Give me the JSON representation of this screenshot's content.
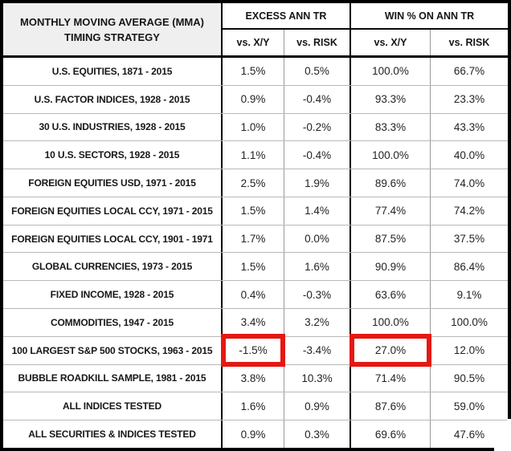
{
  "table": {
    "title_lines": [
      "MONTHLY MOVING AVERAGE (MMA)",
      "TIMING STRATEGY"
    ],
    "groups": [
      {
        "label": "EXCESS ANN TR",
        "sub": [
          "vs. X/Y",
          "vs. RISK"
        ]
      },
      {
        "label": "WIN % ON ANN TR",
        "sub": [
          "vs. X/Y",
          "vs. RISK"
        ]
      }
    ],
    "rows": [
      {
        "label": "U.S. EQUITIES, 1871 - 2015",
        "values": [
          "1.5%",
          "0.5%",
          "100.0%",
          "66.7%"
        ]
      },
      {
        "label": "U.S. FACTOR INDICES, 1928 - 2015",
        "values": [
          "0.9%",
          "-0.4%",
          "93.3%",
          "23.3%"
        ]
      },
      {
        "label": "30 U.S. INDUSTRIES, 1928 - 2015",
        "values": [
          "1.0%",
          "-0.2%",
          "83.3%",
          "43.3%"
        ]
      },
      {
        "label": "10 U.S. SECTORS, 1928 - 2015",
        "values": [
          "1.1%",
          "-0.4%",
          "100.0%",
          "40.0%"
        ]
      },
      {
        "label": "FOREIGN EQUITIES USD, 1971 - 2015",
        "values": [
          "2.5%",
          "1.9%",
          "89.6%",
          "74.0%"
        ]
      },
      {
        "label": "FOREIGN EQUITIES LOCAL CCY, 1971 - 2015",
        "values": [
          "1.5%",
          "1.4%",
          "77.4%",
          "74.2%"
        ]
      },
      {
        "label": "FOREIGN EQUITIES LOCAL CCY, 1901 - 1971",
        "values": [
          "1.7%",
          "0.0%",
          "87.5%",
          "37.5%"
        ]
      },
      {
        "label": "GLOBAL CURRENCIES, 1973 - 2015",
        "values": [
          "1.5%",
          "1.6%",
          "90.9%",
          "86.4%"
        ]
      },
      {
        "label": "FIXED INCOME, 1928 - 2015",
        "values": [
          "0.4%",
          "-0.3%",
          "63.6%",
          "9.1%"
        ]
      },
      {
        "label": "COMMODITIES, 1947 - 2015",
        "values": [
          "3.4%",
          "3.2%",
          "100.0%",
          "100.0%"
        ]
      },
      {
        "label": "100 LARGEST S&P 500 STOCKS, 1963 - 2015",
        "values": [
          "-1.5%",
          "-3.4%",
          "27.0%",
          "12.0%"
        ],
        "highlights": [
          0,
          2
        ]
      },
      {
        "label": "BUBBLE ROADKILL SAMPLE, 1981 - 2015",
        "values": [
          "3.8%",
          "10.3%",
          "71.4%",
          "90.5%"
        ]
      },
      {
        "label": "ALL INDICES TESTED",
        "values": [
          "1.6%",
          "0.9%",
          "87.6%",
          "59.0%"
        ]
      },
      {
        "label": "ALL SECURITIES & INDICES TESTED",
        "values": [
          "0.9%",
          "0.3%",
          "69.6%",
          "47.6%"
        ]
      }
    ],
    "colors": {
      "highlight_border": "#e51812",
      "header_bg": "#efefef",
      "grid_thick": "#000000",
      "grid_thin": "#b8b8b8"
    }
  },
  "chart_data": {
    "type": "table",
    "title": "MONTHLY MOVING AVERAGE (MMA) TIMING STRATEGY",
    "column_groups": [
      "EXCESS ANN TR",
      "WIN % ON ANN TR"
    ],
    "columns": [
      "vs. X/Y",
      "vs. RISK",
      "vs. X/Y",
      "vs. RISK"
    ],
    "categories": [
      "U.S. EQUITIES, 1871 - 2015",
      "U.S. FACTOR INDICES, 1928 - 2015",
      "30 U.S. INDUSTRIES, 1928 - 2015",
      "10 U.S. SECTORS, 1928 - 2015",
      "FOREIGN EQUITIES USD, 1971 - 2015",
      "FOREIGN EQUITIES LOCAL CCY, 1971 - 2015",
      "FOREIGN EQUITIES LOCAL CCY, 1901 - 1971",
      "GLOBAL CURRENCIES, 1973 - 2015",
      "FIXED INCOME, 1928 - 2015",
      "COMMODITIES, 1947 - 2015",
      "100 LARGEST S&P 500 STOCKS, 1963 - 2015",
      "BUBBLE ROADKILL SAMPLE, 1981 - 2015",
      "ALL INDICES TESTED",
      "ALL SECURITIES & INDICES TESTED"
    ],
    "series": [
      {
        "name": "Excess Ann TR vs. X/Y (%)",
        "values": [
          1.5,
          0.9,
          1.0,
          1.1,
          2.5,
          1.5,
          1.7,
          1.5,
          0.4,
          3.4,
          -1.5,
          3.8,
          1.6,
          0.9
        ]
      },
      {
        "name": "Excess Ann TR vs. RISK (%)",
        "values": [
          0.5,
          -0.4,
          -0.2,
          -0.4,
          1.9,
          1.4,
          0.0,
          1.6,
          -0.3,
          3.2,
          -3.4,
          10.3,
          0.9,
          0.3
        ]
      },
      {
        "name": "Win % on Ann TR vs. X/Y (%)",
        "values": [
          100.0,
          93.3,
          83.3,
          100.0,
          89.6,
          77.4,
          87.5,
          90.9,
          63.6,
          100.0,
          27.0,
          71.4,
          87.6,
          69.6
        ]
      },
      {
        "name": "Win % on Ann TR vs. RISK (%)",
        "values": [
          66.7,
          23.3,
          43.3,
          40.0,
          74.0,
          74.2,
          37.5,
          86.4,
          9.1,
          100.0,
          12.0,
          90.5,
          59.0,
          47.6
        ]
      }
    ],
    "annotations": [
      "red box around EXCESS vs. X/Y of 100 LARGEST S&P 500 STOCKS (-1.5%)",
      "red box around WIN % vs. X/Y of 100 LARGEST S&P 500 STOCKS (27.0%)"
    ]
  }
}
